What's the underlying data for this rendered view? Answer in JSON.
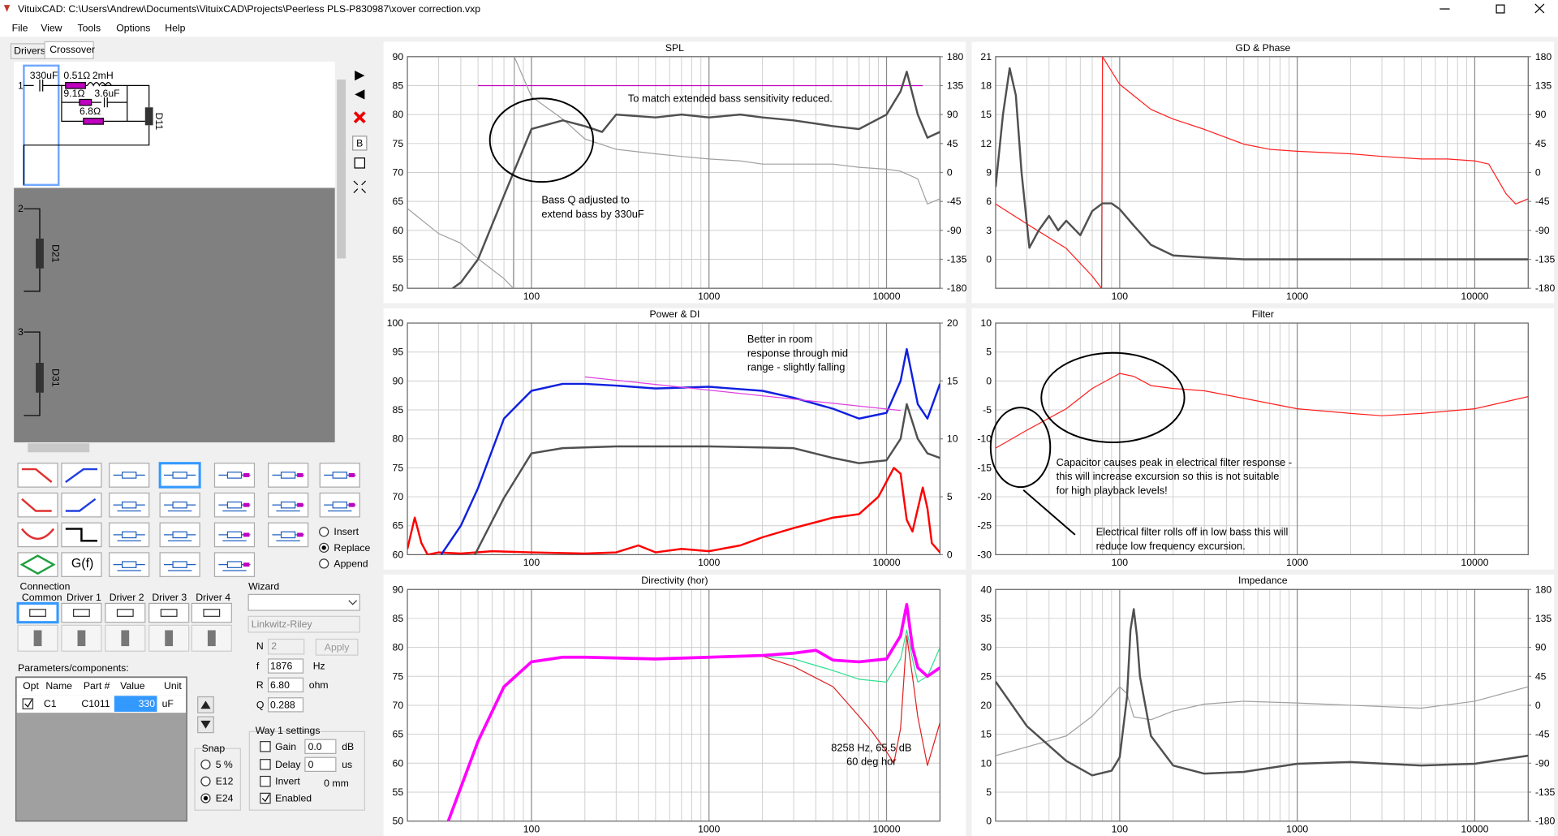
{
  "window": {
    "title": "VituixCAD: C:\\Users\\Andrew\\Documents\\VituixCAD\\Projects\\Peerless PLS-P830987\\xover correction.vxp"
  },
  "menu": [
    "File",
    "View",
    "Tools",
    "Options",
    "Help"
  ],
  "tabs": [
    "Drivers",
    "Crossover"
  ],
  "schematic": {
    "ways": [
      "1",
      "2",
      "3"
    ],
    "components": [
      "330uF",
      "0.51Ω",
      "2mH",
      "9.1Ω",
      "3.6uF",
      "6.8Ω"
    ],
    "drivers": [
      "D11",
      "D21",
      "D31"
    ]
  },
  "toolbar": [
    "B"
  ],
  "palette": {
    "function": "G(f)",
    "modes": [
      "Insert",
      "Replace",
      "Append"
    ]
  },
  "connection": {
    "title": "Connection",
    "columns": [
      "Common",
      "Driver 1",
      "Driver 2",
      "Driver 3",
      "Driver 4"
    ]
  },
  "wizard": {
    "title": "Wizard",
    "type": "Linkwitz-Riley",
    "apply": "Apply",
    "fields": [
      {
        "label": "N",
        "value": "2"
      },
      {
        "label": "f",
        "value": "1876",
        "unit": "Hz"
      },
      {
        "label": "R",
        "value": "6.80",
        "unit": "ohm"
      },
      {
        "label": "Q",
        "value": "0.288"
      }
    ]
  },
  "parameters": {
    "title": "Parameters/components:",
    "headers": [
      "Opt",
      "Name",
      "Part #",
      "Value",
      "Unit"
    ],
    "rows": [
      [
        "C1",
        "C1011",
        "330",
        "uF"
      ]
    ]
  },
  "snap": {
    "title": "Snap",
    "options": [
      "5 %",
      "E12",
      "E24"
    ]
  },
  "way_settings": {
    "title": "Way 1 settings",
    "gain": {
      "label": "Gain",
      "value": "0.0",
      "unit": "dB"
    },
    "delay": {
      "label": "Delay",
      "value": "0",
      "unit": "us"
    },
    "invert": "Invert",
    "offset": "0 mm",
    "enabled": "Enabled"
  },
  "plots": [
    {
      "title": "SPL",
      "xlim": [
        20,
        20000
      ],
      "xticks": [
        100,
        1000,
        10000
      ],
      "log_x": true,
      "grid": true,
      "ylim": [
        50,
        90
      ],
      "yticks": [
        90,
        85,
        80,
        75,
        70,
        65,
        60,
        55,
        50
      ],
      "y2lim": [
        -180,
        180
      ],
      "y2ticks": [
        180,
        135,
        90,
        45,
        0,
        -45,
        -90,
        -135,
        -180
      ],
      "series": [
        {
          "color": "#c000c0",
          "width": 1,
          "x": [
            50,
            16000
          ],
          "values": [
            85,
            85
          ]
        },
        {
          "color": "#a0a0a0",
          "width": 1,
          "axis": "y2",
          "x": [
            20,
            30,
            40,
            50,
            70,
            79,
            80,
            100,
            150,
            200,
            300,
            500,
            700,
            1000,
            1500,
            2000,
            3000,
            5000,
            7000,
            10000,
            12000,
            15000,
            17000,
            20000
          ],
          "values": [
            -56,
            -95,
            -110,
            -134,
            -165,
            -180,
            180,
            118,
            83,
            52,
            36,
            29,
            25,
            21,
            18,
            13,
            13,
            13,
            8,
            5,
            2,
            -10,
            -49,
            -41
          ]
        },
        {
          "color": "#505050",
          "width": 2,
          "x": [
            36,
            40,
            50,
            70,
            100,
            150,
            200,
            250,
            300,
            500,
            700,
            1000,
            1500,
            2000,
            3000,
            5000,
            7000,
            10000,
            12000,
            13000,
            15000,
            17000,
            20000
          ],
          "values": [
            50,
            51,
            55,
            66,
            77.5,
            79,
            78,
            77,
            80,
            79.5,
            80,
            79.5,
            80,
            79.5,
            79,
            78,
            77.5,
            80,
            84,
            87.4,
            80,
            76,
            77
          ]
        }
      ],
      "annotations": [
        {
          "lines": [
            "To match extended bass sensitivity reduced."
          ]
        },
        {
          "lines": [
            "Bass Q adjusted to",
            "extend bass by 330uF"
          ]
        }
      ]
    },
    {
      "title": "GD & Phase",
      "xlim": [
        20,
        20000
      ],
      "xticks": [
        100,
        1000,
        10000
      ],
      "log_x": true,
      "grid": true,
      "ylim": [
        -3,
        21
      ],
      "yticks": [
        21,
        18,
        15,
        12,
        9,
        6,
        3,
        0
      ],
      "y2lim": [
        -180,
        180
      ],
      "y2ticks": [
        180,
        135,
        90,
        45,
        0,
        -45,
        -90,
        -135,
        -180
      ],
      "series": [
        {
          "color": "#ff2020",
          "width": 1,
          "axis": "y2",
          "x": [
            20,
            30,
            50,
            70,
            79,
            80,
            100,
            150,
            200,
            300,
            500,
            700,
            1000,
            2000,
            3000,
            5000,
            7000,
            10000,
            12000,
            15000,
            17000,
            20000
          ],
          "values": [
            -49,
            -80,
            -118,
            -161,
            -180,
            180,
            137,
            98,
            83,
            67,
            44,
            36,
            33,
            29,
            25,
            21,
            21,
            18,
            13,
            -33,
            -49,
            -41
          ]
        },
        {
          "color": "#505050",
          "width": 2,
          "x": [
            20,
            22,
            24,
            26,
            28,
            31,
            35,
            40,
            45,
            50,
            60,
            70,
            80,
            90,
            100,
            120,
            150,
            200,
            300,
            500,
            1000,
            2000,
            5000,
            10000,
            20000
          ],
          "values": [
            7.5,
            15,
            19.8,
            17,
            9,
            1.2,
            3,
            4.5,
            3,
            4,
            2.5,
            5,
            5.8,
            5.8,
            5.2,
            3.5,
            1.5,
            0.4,
            0.2,
            0,
            0,
            0,
            0,
            0,
            0
          ]
        }
      ],
      "annotations": []
    },
    {
      "title": "Power & DI",
      "xlim": [
        20,
        20000
      ],
      "xticks": [
        100,
        1000,
        10000
      ],
      "log_x": true,
      "grid": true,
      "ylim": [
        60,
        100
      ],
      "yticks": [
        100,
        95,
        90,
        85,
        80,
        75,
        70,
        65,
        60
      ],
      "y2lim": [
        0,
        20
      ],
      "y2ticks": [
        20,
        15,
        10,
        5,
        0
      ],
      "series": [
        {
          "color": "#ff0000",
          "width": 2,
          "axis": "y2",
          "x": [
            20,
            22,
            24,
            26,
            30,
            40,
            60,
            100,
            200,
            300,
            400,
            500,
            700,
            1000,
            1500,
            2000,
            3000,
            5000,
            7000,
            9000,
            11000,
            12000,
            13000,
            14000,
            16000,
            17000,
            18000,
            20000
          ],
          "values": [
            0.5,
            3.2,
            1,
            0,
            0.2,
            0.1,
            0.3,
            0.2,
            0.1,
            0.2,
            0.8,
            0.2,
            0.5,
            0.3,
            0.8,
            1.5,
            2.3,
            3.2,
            3.5,
            5,
            7.5,
            7,
            3,
            2,
            5.8,
            4,
            1,
            0.2
          ]
        },
        {
          "color": "#505050",
          "width": 2,
          "x": [
            48,
            70,
            100,
            150,
            300,
            1000,
            3000,
            5000,
            7000,
            10000,
            12000,
            13000,
            15000,
            17000,
            20000
          ],
          "values": [
            60,
            69.8,
            77.5,
            78.4,
            78.7,
            78.7,
            78.4,
            76.7,
            75.8,
            76.3,
            80,
            86,
            80,
            77.5,
            76.7
          ]
        },
        {
          "color": "#1020e0",
          "width": 2,
          "x": [
            31,
            40,
            50,
            70,
            100,
            150,
            200,
            300,
            500,
            1000,
            2000,
            3000,
            5000,
            7000,
            10000,
            12000,
            13000,
            15000,
            17000,
            20000
          ],
          "values": [
            60,
            65,
            71.5,
            83.5,
            88.3,
            89.5,
            89.5,
            89.2,
            88.7,
            89,
            88.3,
            87.1,
            85.2,
            83.5,
            84.5,
            90,
            95.5,
            86,
            83.5,
            89.5
          ]
        },
        {
          "color": "#e040e0",
          "width": 1,
          "x": [
            200,
            12000
          ],
          "values": [
            90.7,
            84.9
          ]
        }
      ],
      "annotations": [
        {
          "lines": [
            "Better in room",
            "response through mid",
            "range - slightly falling"
          ]
        }
      ]
    },
    {
      "title": "Filter",
      "xlim": [
        20,
        20000
      ],
      "xticks": [
        100,
        1000,
        10000
      ],
      "log_x": true,
      "grid": true,
      "ylim": [
        -30,
        10
      ],
      "yticks": [
        10,
        5,
        0,
        -5,
        -10,
        -15,
        -20,
        -25,
        -30
      ],
      "series": [
        {
          "color": "#ff2020",
          "width": 1,
          "x": [
            20,
            30,
            50,
            70,
            100,
            120,
            150,
            200,
            300,
            500,
            1000,
            2000,
            3000,
            5000,
            10000,
            20000
          ],
          "values": [
            -11.6,
            -8.5,
            -4.8,
            -1.3,
            1.3,
            0.8,
            -0.8,
            -1.3,
            -1.7,
            -3,
            -4.8,
            -5.6,
            -6,
            -5.6,
            -4.8,
            -2.7
          ]
        }
      ],
      "annotations": [
        {
          "lines": [
            "Capacitor causes peak in electrical filter response -",
            "this will increase excursion so this is not suitable",
            "for high playback levels!"
          ]
        },
        {
          "lines": [
            "Electrical filter rolls off in low bass this will",
            "reduce low frequency excursion."
          ]
        }
      ]
    },
    {
      "title": "Directivity (hor)",
      "xlim": [
        20,
        20000
      ],
      "xticks": [
        100,
        1000,
        10000
      ],
      "log_x": true,
      "grid": true,
      "ylim": [
        50,
        90
      ],
      "yticks": [
        90,
        85,
        80,
        75,
        70,
        65,
        60,
        55,
        50
      ],
      "series": [
        {
          "color": "#e02020",
          "width": 1,
          "x": [
            34,
            50,
            70,
            100,
            150,
            200,
            500,
            1000,
            2000,
            3000,
            5000,
            7000,
            8258,
            10000,
            11000,
            12000,
            13000,
            14000,
            15000,
            17000,
            20000
          ],
          "values": [
            50,
            63.8,
            73.2,
            77.5,
            78.3,
            78.3,
            78,
            78.3,
            78.5,
            76.7,
            73.2,
            68.1,
            65.5,
            62,
            60,
            66,
            82,
            75,
            68,
            59.6,
            67
          ]
        },
        {
          "color": "#30e090",
          "width": 1,
          "x": [
            34,
            50,
            70,
            100,
            150,
            200,
            500,
            1000,
            2000,
            3000,
            5000,
            7000,
            10000,
            12000,
            13000,
            14000,
            15000,
            17000,
            20000
          ],
          "values": [
            50,
            63.8,
            73.2,
            77.5,
            78.3,
            78.3,
            78,
            78.3,
            78.5,
            78,
            76,
            74.5,
            74,
            78,
            83,
            78,
            74,
            75,
            80
          ]
        },
        {
          "color": "#ff00ff",
          "width": 3,
          "x": [
            34,
            50,
            70,
            100,
            150,
            200,
            500,
            1000,
            2000,
            3000,
            4000,
            5000,
            7000,
            10000,
            12000,
            13000,
            14000,
            15000,
            17000,
            20000
          ],
          "values": [
            50,
            63.8,
            73.2,
            77.5,
            78.3,
            78.3,
            78,
            78.3,
            78.6,
            79,
            79.5,
            77.8,
            77.5,
            78,
            82,
            87.4,
            80,
            76.5,
            75,
            76.5
          ]
        }
      ],
      "annotations": [
        {
          "lines": [
            "8258 Hz, 65.5 dB",
            "60 deg hor"
          ]
        }
      ]
    },
    {
      "title": "Impedance",
      "xlim": [
        20,
        20000
      ],
      "xticks": [
        100,
        1000,
        10000
      ],
      "log_x": true,
      "grid": true,
      "ylim": [
        0,
        40
      ],
      "yticks": [
        40,
        35,
        30,
        25,
        20,
        15,
        10,
        5,
        0
      ],
      "y2lim": [
        -180,
        180
      ],
      "y2ticks": [
        180,
        135,
        90,
        45,
        0,
        -45,
        -90,
        -135,
        -180
      ],
      "series": [
        {
          "color": "#a0a0a0",
          "width": 1,
          "x": [
            20,
            50,
            70,
            100,
            110,
            120,
            150,
            200,
            300,
            500,
            1000,
            2000,
            5000,
            10000,
            20000
          ],
          "values": [
            11.3,
            14.7,
            18.1,
            23.2,
            22,
            18,
            17.5,
            19,
            20.2,
            20.7,
            20.4,
            20,
            19.5,
            20.7,
            23.2
          ]
        },
        {
          "color": "#505050",
          "width": 2,
          "x": [
            20,
            30,
            50,
            70,
            90,
            100,
            110,
            115,
            120,
            125,
            130,
            150,
            200,
            300,
            500,
            1000,
            2000,
            5000,
            10000,
            20000
          ],
          "values": [
            24.1,
            16.4,
            10.4,
            7.9,
            8.7,
            11,
            21.5,
            33,
            36.6,
            32,
            25,
            14.7,
            9.6,
            8.2,
            8.5,
            9.9,
            10.2,
            9.6,
            9.9,
            11.3
          ]
        }
      ],
      "annotations": []
    }
  ]
}
